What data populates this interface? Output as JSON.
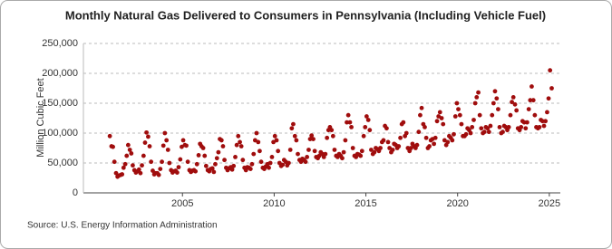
{
  "chart_data": {
    "type": "scatter",
    "title": "Monthly Natural Gas Delivered to Consumers in Pennsylvania (Including Vehicle Fuel)",
    "y_label": "Million Cubic Feet",
    "source": "Source: U.S. Energy Information Administration",
    "color": "#a00d0d",
    "grid": true,
    "xlim": [
      1999.6,
      2025.6
    ],
    "xticks": [
      2005,
      2010,
      2015,
      2020,
      2025
    ],
    "ylim": [
      0,
      250000
    ],
    "yticks": [
      0,
      {
        "value": 50000,
        "label": "50,000"
      },
      {
        "value": 100000,
        "label": "100,000"
      },
      {
        "value": 150000,
        "label": "150,000"
      },
      {
        "value": 200000,
        "label": "200,000"
      },
      {
        "value": 250000,
        "label": "250,000"
      }
    ],
    "series": [
      {
        "name": "Natural Gas Delivered",
        "color": "#a00d0d",
        "x": [
          2001.04,
          2001.13,
          2001.21,
          2001.29,
          2001.38,
          2001.46,
          2001.54,
          2001.63,
          2001.71,
          2001.79,
          2001.88,
          2001.96,
          2002.04,
          2002.13,
          2002.21,
          2002.29,
          2002.38,
          2002.46,
          2002.54,
          2002.63,
          2002.71,
          2002.79,
          2002.88,
          2002.96,
          2003.04,
          2003.13,
          2003.21,
          2003.29,
          2003.38,
          2003.46,
          2003.54,
          2003.63,
          2003.71,
          2003.79,
          2003.88,
          2003.96,
          2004.04,
          2004.13,
          2004.21,
          2004.29,
          2004.38,
          2004.46,
          2004.54,
          2004.63,
          2004.71,
          2004.79,
          2004.88,
          2004.96,
          2005.04,
          2005.13,
          2005.21,
          2005.29,
          2005.38,
          2005.46,
          2005.54,
          2005.63,
          2005.71,
          2005.79,
          2005.88,
          2005.96,
          2006.04,
          2006.13,
          2006.21,
          2006.29,
          2006.38,
          2006.46,
          2006.54,
          2006.63,
          2006.71,
          2006.79,
          2006.88,
          2006.96,
          2007.04,
          2007.13,
          2007.21,
          2007.29,
          2007.38,
          2007.46,
          2007.54,
          2007.63,
          2007.71,
          2007.79,
          2007.88,
          2007.96,
          2008.04,
          2008.13,
          2008.21,
          2008.29,
          2008.38,
          2008.46,
          2008.54,
          2008.63,
          2008.71,
          2008.79,
          2008.88,
          2008.96,
          2009.04,
          2009.13,
          2009.21,
          2009.29,
          2009.38,
          2009.46,
          2009.54,
          2009.63,
          2009.71,
          2009.79,
          2009.88,
          2009.96,
          2010.04,
          2010.13,
          2010.21,
          2010.29,
          2010.38,
          2010.46,
          2010.54,
          2010.63,
          2010.71,
          2010.79,
          2010.88,
          2010.96,
          2011.04,
          2011.13,
          2011.21,
          2011.29,
          2011.38,
          2011.46,
          2011.54,
          2011.63,
          2011.71,
          2011.79,
          2011.88,
          2011.96,
          2012.04,
          2012.13,
          2012.21,
          2012.29,
          2012.38,
          2012.46,
          2012.54,
          2012.63,
          2012.71,
          2012.79,
          2012.88,
          2012.96,
          2013.04,
          2013.13,
          2013.21,
          2013.29,
          2013.38,
          2013.46,
          2013.54,
          2013.63,
          2013.71,
          2013.79,
          2013.88,
          2013.96,
          2014.04,
          2014.13,
          2014.21,
          2014.29,
          2014.38,
          2014.46,
          2014.54,
          2014.63,
          2014.71,
          2014.79,
          2014.88,
          2014.96,
          2015.04,
          2015.13,
          2015.21,
          2015.29,
          2015.38,
          2015.46,
          2015.54,
          2015.63,
          2015.71,
          2015.79,
          2015.88,
          2015.96,
          2016.04,
          2016.13,
          2016.21,
          2016.29,
          2016.38,
          2016.46,
          2016.54,
          2016.63,
          2016.71,
          2016.79,
          2016.88,
          2016.96,
          2017.04,
          2017.13,
          2017.21,
          2017.29,
          2017.38,
          2017.46,
          2017.54,
          2017.63,
          2017.71,
          2017.79,
          2017.88,
          2017.96,
          2018.04,
          2018.13,
          2018.21,
          2018.29,
          2018.38,
          2018.46,
          2018.54,
          2018.63,
          2018.71,
          2018.79,
          2018.88,
          2018.96,
          2019.04,
          2019.13,
          2019.21,
          2019.29,
          2019.38,
          2019.46,
          2019.54,
          2019.63,
          2019.71,
          2019.79,
          2019.88,
          2019.96,
          2020.04,
          2020.13,
          2020.21,
          2020.29,
          2020.38,
          2020.46,
          2020.54,
          2020.63,
          2020.71,
          2020.79,
          2020.88,
          2020.96,
          2021.04,
          2021.13,
          2021.21,
          2021.29,
          2021.38,
          2021.46,
          2021.54,
          2021.63,
          2021.71,
          2021.79,
          2021.88,
          2021.96,
          2022.04,
          2022.13,
          2022.21,
          2022.29,
          2022.38,
          2022.46,
          2022.54,
          2022.63,
          2022.71,
          2022.79,
          2022.88,
          2022.96,
          2023.04,
          2023.13,
          2023.21,
          2023.29,
          2023.38,
          2023.46,
          2023.54,
          2023.63,
          2023.71,
          2023.79,
          2023.88,
          2023.96,
          2024.04,
          2024.13,
          2024.21,
          2024.29,
          2024.38,
          2024.46,
          2024.54,
          2024.63,
          2024.71,
          2024.79,
          2024.88,
          2024.96,
          2025.04,
          2025.13
        ],
        "values": [
          95000,
          78000,
          77000,
          52000,
          33000,
          27000,
          29000,
          30000,
          31000,
          42000,
          48000,
          62000,
          80000,
          72000,
          66000,
          46000,
          38000,
          34000,
          36000,
          39000,
          33000,
          46000,
          62000,
          84000,
          101000,
          94000,
          78000,
          52000,
          37000,
          31000,
          33000,
          33000,
          30000,
          40000,
          52000,
          79000,
          100000,
          88000,
          72000,
          50000,
          38000,
          34000,
          36000,
          37000,
          34000,
          43000,
          56000,
          77000,
          88000,
          80000,
          79000,
          52000,
          38000,
          35000,
          37000,
          38000,
          36000,
          48000,
          63000,
          82000,
          78000,
          75000,
          62000,
          45000,
          38000,
          36000,
          40000,
          41000,
          35000,
          48000,
          58000,
          68000,
          90000,
          88000,
          78000,
          55000,
          42000,
          38000,
          41000,
          43000,
          39000,
          45000,
          60000,
          80000,
          95000,
          85000,
          78000,
          55000,
          42000,
          38000,
          43000,
          42000,
          40000,
          48000,
          65000,
          88000,
          100000,
          85000,
          70000,
          52000,
          42000,
          40000,
          44000,
          48000,
          42000,
          50000,
          60000,
          85000,
          95000,
          88000,
          70000,
          50000,
          45000,
          47000,
          55000,
          52000,
          46000,
          50000,
          72000,
          108000,
          115000,
          95000,
          88000,
          65000,
          55000,
          52000,
          57000,
          55000,
          52000,
          60000,
          72000,
          90000,
          96000,
          90000,
          70000,
          60000,
          58000,
          62000,
          68000,
          65000,
          60000,
          65000,
          92000,
          105000,
          110000,
          105000,
          95000,
          72000,
          62000,
          60000,
          65000,
          62000,
          58000,
          68000,
          88000,
          118000,
          130000,
          118000,
          110000,
          75000,
          62000,
          60000,
          65000,
          64000,
          62000,
          70000,
          95000,
          110000,
          128000,
          122000,
          105000,
          72000,
          65000,
          68000,
          75000,
          73000,
          70000,
          75000,
          85000,
          88000,
          112000,
          108000,
          85000,
          75000,
          68000,
          72000,
          82000,
          80000,
          75000,
          78000,
          92000,
          115000,
          118000,
          95000,
          100000,
          75000,
          70000,
          75000,
          82000,
          78000,
          75000,
          80000,
          102000,
          130000,
          142000,
          115000,
          110000,
          92000,
          75000,
          78000,
          88000,
          90000,
          82000,
          92000,
          120000,
          128000,
          135000,
          125000,
          115000,
          88000,
          80000,
          85000,
          95000,
          92000,
          88000,
          98000,
          128000,
          150000,
          140000,
          130000,
          115000,
          95000,
          95000,
          98000,
          108000,
          105000,
          100000,
          110000,
          122000,
          150000,
          160000,
          168000,
          130000,
          108000,
          100000,
          102000,
          110000,
          108000,
          102000,
          112000,
          130000,
          150000,
          170000,
          158000,
          140000,
          110000,
          100000,
          102000,
          112000,
          110000,
          105000,
          110000,
          130000,
          152000,
          160000,
          148000,
          138000,
          108000,
          105000,
          110000,
          120000,
          118000,
          108000,
          118000,
          140000,
          155000,
          178000,
          155000,
          130000,
          110000,
          108000,
          110000,
          122000,
          120000,
          112000,
          120000,
          135000,
          158000,
          205000,
          175000
        ]
      }
    ]
  }
}
